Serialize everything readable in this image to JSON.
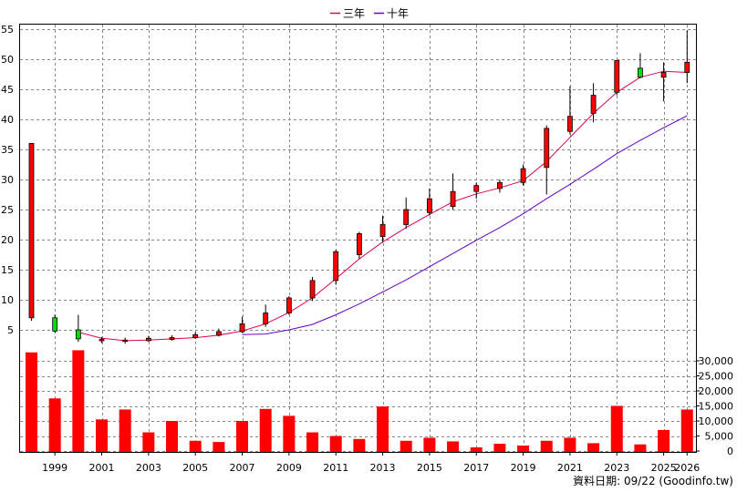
{
  "chart_data": {
    "type": "candlestick",
    "legend": [
      {
        "name": "三年",
        "color": "#dd0055"
      },
      {
        "name": "十年",
        "color": "#6600cc"
      }
    ],
    "legend_position": "top-center",
    "grid": true,
    "price_axis": {
      "ticks": [
        5,
        10,
        15,
        20,
        25,
        30,
        35,
        40,
        45,
        50,
        55
      ],
      "ylim": [
        2,
        56
      ]
    },
    "volume_axis": {
      "ticks": [
        "0",
        "5,000",
        "10,000",
        "15,000",
        "20,000",
        "25,000",
        "30,000"
      ],
      "ylim": [
        0,
        34000
      ]
    },
    "x_tick_labels": [
      "1999",
      "2001",
      "2003",
      "2005",
      "2007",
      "2009",
      "2011",
      "2013",
      "2015",
      "2017",
      "2019",
      "2021",
      "2023",
      "2025",
      "2026"
    ],
    "candles": [
      {
        "year": 1998,
        "open": 7,
        "close": 36,
        "high": 36,
        "low": 6.5
      },
      {
        "year": 1999,
        "open": 7,
        "close": 4.8,
        "high": 7.5,
        "low": 4.5
      },
      {
        "year": 2000,
        "open": 5,
        "close": 3.5,
        "high": 7.5,
        "low": 3.0
      },
      {
        "year": 2001,
        "open": 3.2,
        "close": 3.4,
        "high": 3.8,
        "low": 2.8
      },
      {
        "year": 2002,
        "open": 3.1,
        "close": 3.3,
        "high": 3.7,
        "low": 2.7
      },
      {
        "year": 2003,
        "open": 3.2,
        "close": 3.6,
        "high": 4.0,
        "low": 3.0
      },
      {
        "year": 2004,
        "open": 3.4,
        "close": 3.7,
        "high": 4.1,
        "low": 3.2
      },
      {
        "year": 2005,
        "open": 3.7,
        "close": 4.2,
        "high": 4.6,
        "low": 3.5
      },
      {
        "year": 2006,
        "open": 4.1,
        "close": 4.7,
        "high": 5.2,
        "low": 3.9
      },
      {
        "year": 2007,
        "open": 4.7,
        "close": 6.0,
        "high": 7.2,
        "low": 4.5
      },
      {
        "year": 2008,
        "open": 6.0,
        "close": 7.8,
        "high": 9.2,
        "low": 5.5
      },
      {
        "year": 2009,
        "open": 7.8,
        "close": 10.3,
        "high": 10.6,
        "low": 7.5
      },
      {
        "year": 2010,
        "open": 10.3,
        "close": 13.2,
        "high": 13.8,
        "low": 9.8
      },
      {
        "year": 2011,
        "open": 13.2,
        "close": 18.0,
        "high": 18.3,
        "low": 12.5
      },
      {
        "year": 2012,
        "open": 17.5,
        "close": 21.0,
        "high": 21.3,
        "low": 16.8
      },
      {
        "year": 2013,
        "open": 20.5,
        "close": 22.5,
        "high": 24.0,
        "low": 19.5
      },
      {
        "year": 2014,
        "open": 22.5,
        "close": 25.0,
        "high": 27.0,
        "low": 21.8
      },
      {
        "year": 2015,
        "open": 24.5,
        "close": 26.8,
        "high": 28.5,
        "low": 24.0
      },
      {
        "year": 2016,
        "open": 25.5,
        "close": 28.0,
        "high": 31.0,
        "low": 25.0
      },
      {
        "year": 2017,
        "open": 28.0,
        "close": 29.0,
        "high": 29.5,
        "low": 26.8
      },
      {
        "year": 2018,
        "open": 28.5,
        "close": 29.5,
        "high": 30.0,
        "low": 27.8
      },
      {
        "year": 2019,
        "open": 29.5,
        "close": 31.8,
        "high": 32.5,
        "low": 29.0
      },
      {
        "year": 2020,
        "open": 32.0,
        "close": 38.5,
        "high": 39.0,
        "low": 27.5
      },
      {
        "year": 2021,
        "open": 38.0,
        "close": 40.5,
        "high": 45.5,
        "low": 37.5
      },
      {
        "year": 2022,
        "open": 41.0,
        "close": 44.0,
        "high": 46.0,
        "low": 39.5
      },
      {
        "year": 2023,
        "open": 44.5,
        "close": 49.8,
        "high": 49.8,
        "low": 44.0
      },
      {
        "year": 2024,
        "open": 48.5,
        "close": 47.0,
        "high": 51.0,
        "low": 46.8
      },
      {
        "year": 2025,
        "open": 47.0,
        "close": 47.8,
        "high": 49.5,
        "low": 43.0
      },
      {
        "year": 2026,
        "open": 47.8,
        "close": 49.5,
        "high": 54.8,
        "low": 46.0
      }
    ],
    "volume": [
      {
        "year": 1998,
        "value": 32800
      },
      {
        "year": 1999,
        "value": 17500
      },
      {
        "year": 2000,
        "value": 33500
      },
      {
        "year": 2001,
        "value": 10500
      },
      {
        "year": 2002,
        "value": 13800
      },
      {
        "year": 2003,
        "value": 6200
      },
      {
        "year": 2004,
        "value": 10000
      },
      {
        "year": 2005,
        "value": 3400
      },
      {
        "year": 2006,
        "value": 3000
      },
      {
        "year": 2007,
        "value": 10000
      },
      {
        "year": 2008,
        "value": 14000
      },
      {
        "year": 2009,
        "value": 11700
      },
      {
        "year": 2010,
        "value": 6200
      },
      {
        "year": 2011,
        "value": 5000
      },
      {
        "year": 2012,
        "value": 4000
      },
      {
        "year": 2013,
        "value": 14800
      },
      {
        "year": 2014,
        "value": 3400
      },
      {
        "year": 2015,
        "value": 4400
      },
      {
        "year": 2016,
        "value": 3200
      },
      {
        "year": 2017,
        "value": 1200
      },
      {
        "year": 2018,
        "value": 2400
      },
      {
        "year": 2019,
        "value": 1800
      },
      {
        "year": 2020,
        "value": 3400
      },
      {
        "year": 2021,
        "value": 4400
      },
      {
        "year": 2022,
        "value": 2600
      },
      {
        "year": 2023,
        "value": 15000
      },
      {
        "year": 2024,
        "value": 2200
      },
      {
        "year": 2025,
        "value": 7000
      },
      {
        "year": 2026,
        "value": 13800
      }
    ],
    "ma3": [
      {
        "year": 2000,
        "value": 4.6
      },
      {
        "year": 2001,
        "value": 3.6
      },
      {
        "year": 2002,
        "value": 3.2
      },
      {
        "year": 2003,
        "value": 3.3
      },
      {
        "year": 2004,
        "value": 3.5
      },
      {
        "year": 2005,
        "value": 3.7
      },
      {
        "year": 2006,
        "value": 4.1
      },
      {
        "year": 2007,
        "value": 4.8
      },
      {
        "year": 2008,
        "value": 6.0
      },
      {
        "year": 2009,
        "value": 7.9
      },
      {
        "year": 2010,
        "value": 10.3
      },
      {
        "year": 2011,
        "value": 13.5
      },
      {
        "year": 2012,
        "value": 16.8
      },
      {
        "year": 2013,
        "value": 19.6
      },
      {
        "year": 2014,
        "value": 22.0
      },
      {
        "year": 2015,
        "value": 24.2
      },
      {
        "year": 2016,
        "value": 26.3
      },
      {
        "year": 2017,
        "value": 27.6
      },
      {
        "year": 2018,
        "value": 28.6
      },
      {
        "year": 2019,
        "value": 29.8
      },
      {
        "year": 2020,
        "value": 33.0
      },
      {
        "year": 2021,
        "value": 37.0
      },
      {
        "year": 2022,
        "value": 41.0
      },
      {
        "year": 2023,
        "value": 44.5
      },
      {
        "year": 2024,
        "value": 47.0
      },
      {
        "year": 2025,
        "value": 48.0
      },
      {
        "year": 2026,
        "value": 47.8
      }
    ],
    "ma10": [
      {
        "year": 2007,
        "value": 4.2
      },
      {
        "year": 2008,
        "value": 4.3
      },
      {
        "year": 2009,
        "value": 5.0
      },
      {
        "year": 2010,
        "value": 5.9
      },
      {
        "year": 2011,
        "value": 7.5
      },
      {
        "year": 2012,
        "value": 9.3
      },
      {
        "year": 2013,
        "value": 11.3
      },
      {
        "year": 2014,
        "value": 13.3
      },
      {
        "year": 2015,
        "value": 15.5
      },
      {
        "year": 2016,
        "value": 17.7
      },
      {
        "year": 2017,
        "value": 19.9
      },
      {
        "year": 2018,
        "value": 22.0
      },
      {
        "year": 2019,
        "value": 24.3
      },
      {
        "year": 2020,
        "value": 26.8
      },
      {
        "year": 2021,
        "value": 29.2
      },
      {
        "year": 2022,
        "value": 31.7
      },
      {
        "year": 2023,
        "value": 34.3
      },
      {
        "year": 2024,
        "value": 36.5
      },
      {
        "year": 2025,
        "value": 38.6
      },
      {
        "year": 2026,
        "value": 40.6
      }
    ],
    "colors": {
      "up": "#ff0000",
      "down": "#00dd00",
      "volume": "#ff0000",
      "grid": "#888888"
    },
    "footer": "資料日期: 09/22  (Goodinfo.tw)"
  }
}
